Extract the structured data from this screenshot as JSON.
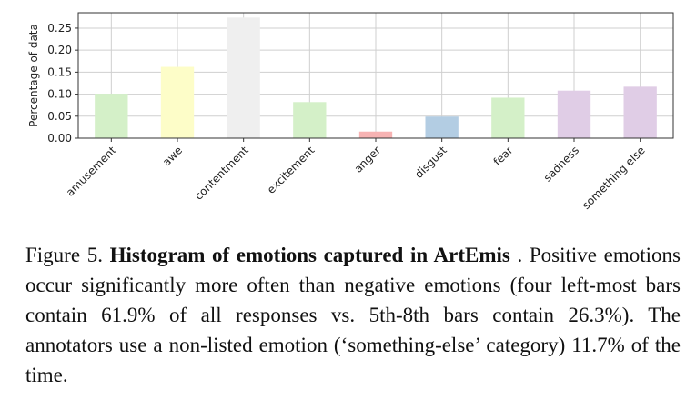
{
  "chart_data": {
    "type": "bar",
    "categories": [
      "amusement",
      "awe",
      "contentment",
      "excitement",
      "anger",
      "disgust",
      "fear",
      "sadness",
      "something else"
    ],
    "values": [
      0.101,
      0.162,
      0.274,
      0.082,
      0.015,
      0.049,
      0.092,
      0.108,
      0.117
    ],
    "bar_colors": [
      "#d4f0c8",
      "#fdfdc8",
      "#efefef",
      "#d4f0c8",
      "#f7b3b3",
      "#b3cde3",
      "#d4f0c8",
      "#e0cde6",
      "#e0cde6"
    ],
    "ylabel": "Percentage of data",
    "ylim": [
      0,
      0.285
    ],
    "yticks": [
      "0.00",
      "0.05",
      "0.10",
      "0.15",
      "0.20",
      "0.25"
    ],
    "ytick_values": [
      0,
      0.05,
      0.1,
      0.15,
      0.2,
      0.25
    ],
    "grid": true
  },
  "caption": {
    "label": "Figure 5. ",
    "bold": "Histogram of emotions captured in ArtEmis",
    "text": " .  Positive emotions occur significantly more often than negative emotions (four left-most bars contain 61.9% of all responses vs. 5th-8th bars contain 26.3%). The annotators use a non-listed emotion (‘something-else’ category) 11.7% of the time."
  }
}
